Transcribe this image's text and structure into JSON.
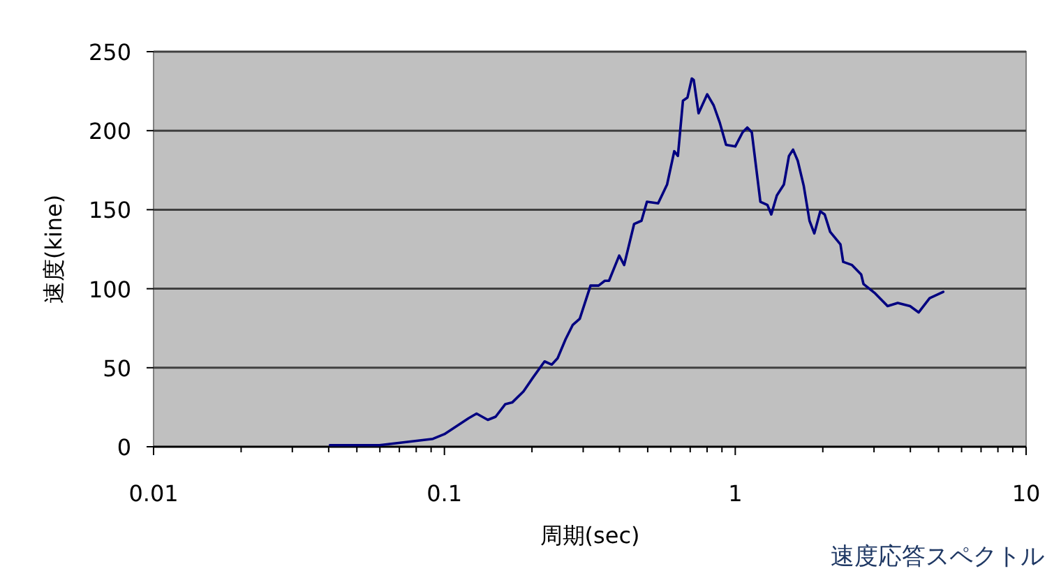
{
  "chart_data": {
    "type": "line",
    "xlabel": "周期(sec)",
    "ylabel": "速度(kine)",
    "annotations": [
      "速度応答スペクトル"
    ],
    "log": "x",
    "grid": "y",
    "xlim": [
      0.01,
      10
    ],
    "ylim": [
      0,
      250
    ],
    "xticks": [
      0.01,
      0.1,
      1,
      10
    ],
    "yticks": [
      0,
      50,
      100,
      150,
      200,
      250
    ],
    "series": [
      {
        "color": "#000080",
        "x": [
          0.0404,
          0.0598,
          0.0913,
          0.1,
          0.121,
          0.129,
          0.141,
          0.15,
          0.162,
          0.171,
          0.187,
          0.202,
          0.221,
          0.234,
          0.245,
          0.261,
          0.276,
          0.292,
          0.318,
          0.339,
          0.356,
          0.368,
          0.399,
          0.415,
          0.449,
          0.476,
          0.497,
          0.543,
          0.583,
          0.617,
          0.635,
          0.661,
          0.685,
          0.709,
          0.72,
          0.748,
          0.801,
          0.843,
          0.885,
          0.93,
          1.0,
          1.06,
          1.1,
          1.14,
          1.22,
          1.29,
          1.33,
          1.39,
          1.47,
          1.53,
          1.58,
          1.64,
          1.72,
          1.8,
          1.87,
          1.96,
          2.03,
          2.12,
          2.3,
          2.35,
          2.52,
          2.71,
          2.76,
          3.03,
          3.34,
          3.62,
          3.99,
          4.27,
          4.66,
          5.19
        ],
        "values": [
          1,
          1,
          5,
          8,
          18,
          21,
          17,
          19,
          27,
          28,
          35,
          44,
          54,
          52,
          56,
          68,
          77,
          81,
          102,
          102,
          105,
          105,
          121,
          115,
          141,
          143,
          155,
          154,
          166,
          187,
          184,
          219,
          221,
          233,
          232,
          211,
          223,
          216,
          205,
          191,
          190,
          199,
          202,
          199,
          155,
          153,
          147,
          159,
          166,
          184,
          188,
          181,
          165,
          143,
          135,
          149,
          147,
          136,
          128,
          117,
          115,
          109,
          103,
          97,
          89,
          91,
          89,
          85,
          94,
          98
        ]
      }
    ]
  }
}
